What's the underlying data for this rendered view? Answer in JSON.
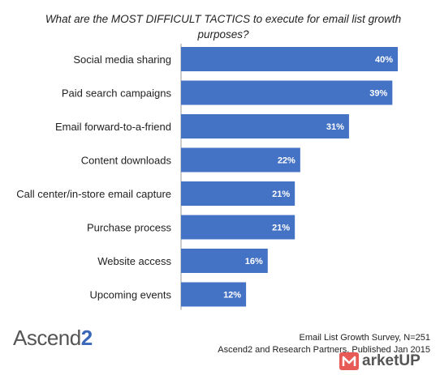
{
  "chart_data": {
    "type": "bar",
    "orientation": "horizontal",
    "title": "What are the MOST DIFFICULT TACTICS to execute for email list growth purposes?",
    "categories": [
      "Social media sharing",
      "Paid search campaigns",
      "Email forward-to-a-friend",
      "Content downloads",
      "Call center/in-store email capture",
      "Purchase process",
      "Website access",
      "Upcoming events"
    ],
    "values": [
      40,
      39,
      31,
      22,
      21,
      21,
      16,
      12
    ],
    "value_labels": [
      "40%",
      "39%",
      "31%",
      "22%",
      "21%",
      "21%",
      "16%",
      "12%"
    ],
    "value_unit": "%",
    "xlim": [
      0,
      40
    ],
    "grid": false,
    "legend": "none",
    "bar_color": "#4472c4"
  },
  "source": {
    "line1": "Email List Growth Survey, N=251",
    "line2": "Ascend2 and Research Partners, Published Jan 2015"
  },
  "logo": {
    "text": "Ascend",
    "suffix": "2"
  },
  "watermark": {
    "icon": "m-logo-icon",
    "text": "arketUP"
  }
}
